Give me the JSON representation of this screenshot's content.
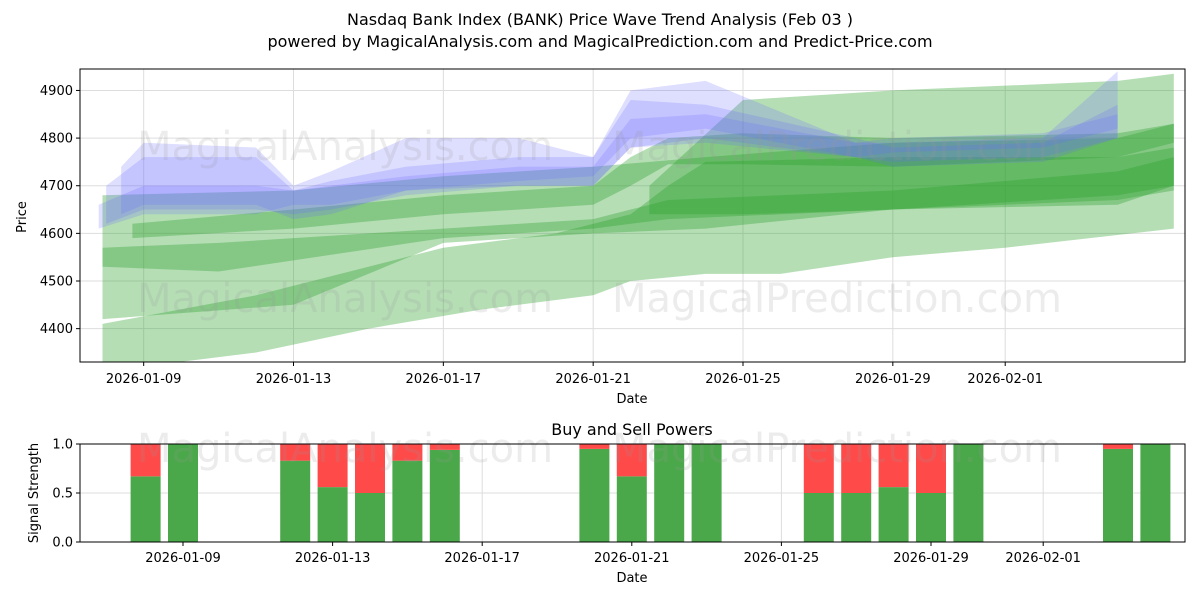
{
  "figure": {
    "title_line1": "Nasdaq Bank Index (BANK) Price Wave Trend Analysis (Feb 03 )",
    "title_line2": "powered by MagicalAnalysis.com and MagicalPrediction.com and Predict-Price.com"
  },
  "watermarks": {
    "left": "MagicalAnalysis.com",
    "right": "MagicalPrediction.com"
  },
  "colors": {
    "green_band": "#2ca02c",
    "blue_band": "#6a6aff",
    "buy": "#4aa84a",
    "sell": "#ff4a4a",
    "grid": "#dddddd"
  },
  "chart_data": [
    {
      "type": "area",
      "title": "",
      "xlabel": "Date",
      "ylabel": "Price",
      "ylim": [
        4330,
        4945
      ],
      "xlim": [
        -1.7,
        27.8
      ],
      "x_origin_date": "2026-01-09",
      "grid": true,
      "yticks": [
        4400,
        4500,
        4600,
        4700,
        4800,
        4900
      ],
      "xticks": [
        {
          "day": 0,
          "label": "2026-01-09"
        },
        {
          "day": 4,
          "label": "2026-01-13"
        },
        {
          "day": 8,
          "label": "2026-01-17"
        },
        {
          "day": 12,
          "label": "2026-01-21"
        },
        {
          "day": 16,
          "label": "2026-01-25"
        },
        {
          "day": 20,
          "label": "2026-01-29"
        },
        {
          "day": 23,
          "label": "2026-02-01"
        }
      ],
      "series": [
        {
          "name": "green wave 1",
          "color": "green",
          "opacity": 0.35,
          "lower": [
            [
              -1.1,
              4420
            ],
            [
              4,
              4450
            ],
            [
              8,
              4580
            ],
            [
              12,
              4600
            ],
            [
              15,
              4610
            ],
            [
              20,
              4650
            ],
            [
              26,
              4660
            ],
            [
              27.5,
              4700
            ]
          ],
          "upper": [
            [
              -1.1,
              4680
            ],
            [
              4,
              4690
            ],
            [
              8,
              4720
            ],
            [
              12,
              4740
            ],
            [
              15,
              4760
            ],
            [
              20,
              4790
            ],
            [
              26,
              4800
            ],
            [
              27.5,
              4830
            ]
          ]
        },
        {
          "name": "green wave 2",
          "color": "green",
          "opacity": 0.35,
          "lower": [
            [
              -0.3,
              4590
            ],
            [
              4,
              4610
            ],
            [
              8,
              4640
            ],
            [
              12,
              4660
            ],
            [
              13,
              4700
            ],
            [
              14,
              4745
            ],
            [
              16,
              4745
            ],
            [
              20,
              4740
            ],
            [
              26,
              4760
            ],
            [
              27.5,
              4790
            ]
          ],
          "upper": [
            [
              -0.3,
              4620
            ],
            [
              4,
              4650
            ],
            [
              8,
              4680
            ],
            [
              12,
              4700
            ],
            [
              13,
              4760
            ],
            [
              14,
              4800
            ],
            [
              16,
              4810
            ],
            [
              20,
              4800
            ],
            [
              26,
              4810
            ],
            [
              27.5,
              4830
            ]
          ]
        },
        {
          "name": "green wave 3",
          "color": "green",
          "opacity": 0.35,
          "lower": [
            [
              -1.1,
              4530
            ],
            [
              2,
              4520
            ],
            [
              8,
              4590
            ],
            [
              12,
              4610
            ],
            [
              14,
              4630
            ],
            [
              20,
              4650
            ],
            [
              26,
              4680
            ],
            [
              27.5,
              4700
            ]
          ],
          "upper": [
            [
              -1.1,
              4570
            ],
            [
              2,
              4580
            ],
            [
              8,
              4610
            ],
            [
              12,
              4630
            ],
            [
              14,
              4670
            ],
            [
              20,
              4690
            ],
            [
              26,
              4730
            ],
            [
              27.5,
              4760
            ]
          ]
        },
        {
          "name": "green wave 4",
          "color": "green",
          "opacity": 0.35,
          "lower": [
            [
              -1.1,
              4310
            ],
            [
              3,
              4350
            ],
            [
              6,
              4400
            ],
            [
              9,
              4440
            ],
            [
              12,
              4470
            ],
            [
              13,
              4500
            ],
            [
              15,
              4515
            ],
            [
              17,
              4515
            ],
            [
              20,
              4550
            ],
            [
              23,
              4570
            ],
            [
              27.5,
              4610
            ]
          ],
          "upper": [
            [
              -1.1,
              4410
            ],
            [
              3,
              4470
            ],
            [
              6,
              4530
            ],
            [
              8,
              4570
            ],
            [
              11,
              4600
            ],
            [
              13,
              4640
            ],
            [
              14,
              4700
            ],
            [
              15,
              4750
            ],
            [
              20,
              4760
            ],
            [
              26,
              4760
            ],
            [
              27.5,
              4780
            ]
          ]
        },
        {
          "name": "green wave 5",
          "color": "green",
          "opacity": 0.35,
          "lower": [
            [
              13.5,
              4640
            ],
            [
              16,
              4640
            ],
            [
              20,
              4650
            ],
            [
              26,
              4670
            ],
            [
              27.5,
              4690
            ]
          ],
          "upper": [
            [
              13.5,
              4700
            ],
            [
              16,
              4880
            ],
            [
              20,
              4900
            ],
            [
              26,
              4920
            ],
            [
              27.5,
              4935
            ]
          ]
        },
        {
          "name": "blue wave 1",
          "color": "blue",
          "opacity": 0.22,
          "lower": [
            [
              -0.6,
              4640
            ],
            [
              0,
              4660
            ],
            [
              3,
              4660
            ],
            [
              4,
              4630
            ],
            [
              5,
              4640
            ],
            [
              7,
              4690
            ],
            [
              10,
              4700
            ],
            [
              12,
              4700
            ],
            [
              13,
              4780
            ],
            [
              15,
              4790
            ],
            [
              19,
              4760
            ],
            [
              20,
              4740
            ],
            [
              24,
              4750
            ],
            [
              26,
              4800
            ]
          ],
          "upper": [
            [
              -0.6,
              4740
            ],
            [
              0,
              4790
            ],
            [
              3,
              4780
            ],
            [
              4,
              4700
            ],
            [
              5,
              4730
            ],
            [
              7,
              4800
            ],
            [
              10,
              4800
            ],
            [
              12,
              4760
            ],
            [
              13,
              4900
            ],
            [
              15,
              4920
            ],
            [
              19,
              4790
            ],
            [
              20,
              4790
            ],
            [
              24,
              4800
            ],
            [
              26,
              4940
            ]
          ]
        },
        {
          "name": "blue wave 2",
          "color": "blue",
          "opacity": 0.22,
          "lower": [
            [
              -1.0,
              4620
            ],
            [
              0,
              4650
            ],
            [
              3,
              4650
            ],
            [
              4,
              4640
            ],
            [
              5,
              4650
            ],
            [
              7,
              4680
            ],
            [
              10,
              4700
            ],
            [
              12,
              4700
            ],
            [
              13,
              4780
            ],
            [
              15,
              4800
            ],
            [
              19,
              4760
            ],
            [
              20,
              4750
            ],
            [
              24,
              4760
            ],
            [
              26,
              4800
            ]
          ],
          "upper": [
            [
              -1.0,
              4700
            ],
            [
              0,
              4760
            ],
            [
              3,
              4760
            ],
            [
              4,
              4690
            ],
            [
              5,
              4710
            ],
            [
              7,
              4740
            ],
            [
              10,
              4760
            ],
            [
              12,
              4760
            ],
            [
              13,
              4880
            ],
            [
              15,
              4870
            ],
            [
              19,
              4800
            ],
            [
              20,
              4780
            ],
            [
              24,
              4790
            ],
            [
              26,
              4870
            ]
          ]
        },
        {
          "name": "blue wave 3",
          "color": "blue",
          "opacity": 0.22,
          "lower": [
            [
              -1.2,
              4610
            ],
            [
              0,
              4640
            ],
            [
              3,
              4640
            ],
            [
              4,
              4660
            ],
            [
              5,
              4660
            ],
            [
              7,
              4690
            ],
            [
              10,
              4710
            ],
            [
              12,
              4720
            ],
            [
              13,
              4800
            ],
            [
              15,
              4820
            ],
            [
              19,
              4760
            ],
            [
              20,
              4770
            ],
            [
              24,
              4780
            ],
            [
              26,
              4820
            ]
          ],
          "upper": [
            [
              -1.2,
              4660
            ],
            [
              0,
              4700
            ],
            [
              3,
              4700
            ],
            [
              4,
              4690
            ],
            [
              5,
              4700
            ],
            [
              7,
              4720
            ],
            [
              10,
              4740
            ],
            [
              12,
              4740
            ],
            [
              13,
              4840
            ],
            [
              15,
              4850
            ],
            [
              19,
              4790
            ],
            [
              20,
              4800
            ],
            [
              24,
              4810
            ],
            [
              26,
              4850
            ]
          ]
        }
      ]
    },
    {
      "type": "bar",
      "title": "Buy and Sell Powers",
      "xlabel": "Date",
      "ylabel": "Signal Strength",
      "ylim": [
        0,
        1
      ],
      "yticks": [
        0.0,
        0.5,
        1.0
      ],
      "xticks": [
        {
          "day": 0,
          "label": "2026-01-09"
        },
        {
          "day": 4,
          "label": "2026-01-13"
        },
        {
          "day": 8,
          "label": "2026-01-17"
        },
        {
          "day": 12,
          "label": "2026-01-21"
        },
        {
          "day": 16,
          "label": "2026-01-25"
        },
        {
          "day": 20,
          "label": "2026-01-29"
        },
        {
          "day": 23,
          "label": "2026-02-01"
        }
      ],
      "bars": [
        {
          "day": -1,
          "buy": 0.67,
          "sell": 0.33
        },
        {
          "day": 0,
          "buy": 1.0,
          "sell": 0.0
        },
        {
          "day": 3,
          "buy": 0.83,
          "sell": 0.17
        },
        {
          "day": 4,
          "buy": 0.56,
          "sell": 0.44
        },
        {
          "day": 5,
          "buy": 0.5,
          "sell": 0.5
        },
        {
          "day": 6,
          "buy": 0.83,
          "sell": 0.17
        },
        {
          "day": 7,
          "buy": 0.94,
          "sell": 0.06
        },
        {
          "day": 11,
          "buy": 0.95,
          "sell": 0.05
        },
        {
          "day": 12,
          "buy": 0.67,
          "sell": 0.33
        },
        {
          "day": 13,
          "buy": 1.0,
          "sell": 0.0
        },
        {
          "day": 14,
          "buy": 1.0,
          "sell": 0.0
        },
        {
          "day": 17,
          "buy": 0.5,
          "sell": 0.5
        },
        {
          "day": 18,
          "buy": 0.5,
          "sell": 0.5
        },
        {
          "day": 19,
          "buy": 0.56,
          "sell": 0.44
        },
        {
          "day": 20,
          "buy": 0.5,
          "sell": 0.5
        },
        {
          "day": 21,
          "buy": 1.0,
          "sell": 0.0
        },
        {
          "day": 25,
          "buy": 0.95,
          "sell": 0.05
        },
        {
          "day": 26,
          "buy": 1.0,
          "sell": 0.0
        }
      ]
    }
  ]
}
